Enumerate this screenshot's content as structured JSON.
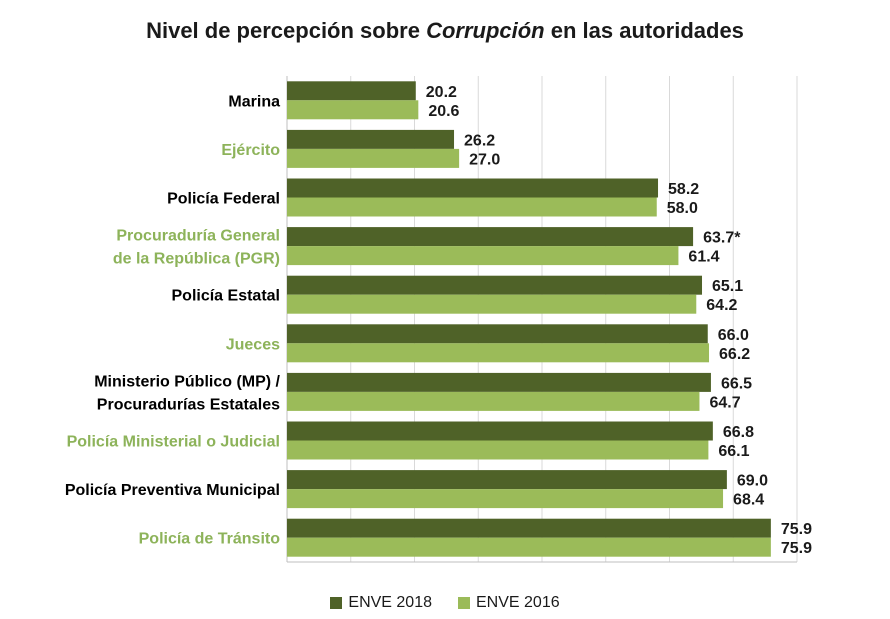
{
  "chart_data": {
    "type": "bar",
    "orientation": "horizontal",
    "title_parts": [
      "Nivel de percepción sobre ",
      "Corrupción",
      " en las autoridades"
    ],
    "categories": [
      [
        "Marina"
      ],
      [
        "Ejército"
      ],
      [
        "Policía Federal"
      ],
      [
        "Procuraduría General",
        "de la República (PGR)"
      ],
      [
        "Policía Estatal"
      ],
      [
        "Jueces"
      ],
      [
        "Ministerio Público (MP) /",
        "Procuradurías Estatales"
      ],
      [
        "Policía Ministerial o Judicial"
      ],
      [
        "Policía Preventiva Municipal"
      ],
      [
        "Policía de Tránsito"
      ]
    ],
    "category_label_colors": [
      "#000000",
      "#8db35a",
      "#000000",
      "#8db35a",
      "#000000",
      "#8db35a",
      "#000000",
      "#8db35a",
      "#000000",
      "#8db35a"
    ],
    "series": [
      {
        "name": "ENVE 2018",
        "color": "#4f6228",
        "values": [
          20.2,
          26.2,
          58.2,
          63.7,
          65.1,
          66.0,
          66.5,
          66.8,
          69.0,
          75.9
        ],
        "labels": [
          "20.2",
          "26.2",
          "58.2",
          "63.7*",
          "65.1",
          "66.0",
          "66.5",
          "66.8",
          "69.0",
          "75.9"
        ]
      },
      {
        "name": "ENVE 2016",
        "color": "#9bbb59",
        "values": [
          20.6,
          27.0,
          58.0,
          61.4,
          64.2,
          66.2,
          64.7,
          66.1,
          68.4,
          75.9
        ],
        "labels": [
          "20.6",
          "27.0",
          "58.0",
          "61.4",
          "64.2",
          "66.2",
          "64.7",
          "66.1",
          "68.4",
          "75.9"
        ]
      }
    ],
    "xlim": [
      0,
      80
    ],
    "grid": true,
    "legend_position": "bottom"
  }
}
